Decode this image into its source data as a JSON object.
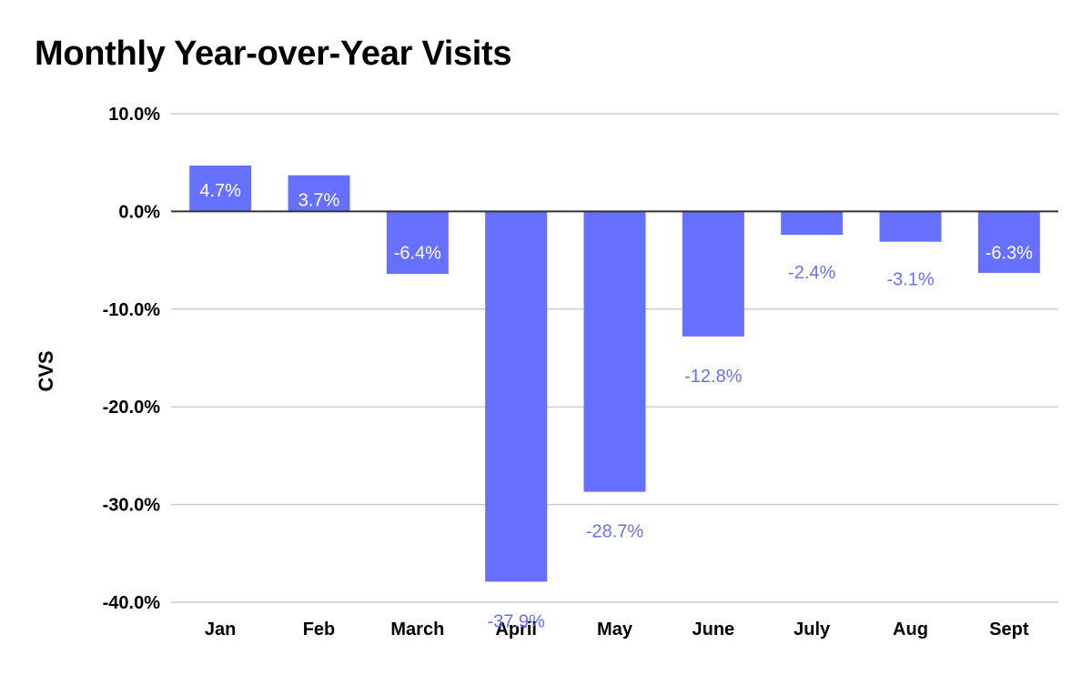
{
  "chart_data": {
    "type": "bar",
    "title": "Monthly Year-over-Year Visits",
    "xlabel": "",
    "ylabel": "CVS",
    "categories": [
      "Jan",
      "Feb",
      "March",
      "April",
      "May",
      "June",
      "July",
      "Aug",
      "Sept"
    ],
    "values": [
      4.7,
      3.7,
      -6.4,
      -37.9,
      -28.7,
      -12.8,
      -2.4,
      -3.1,
      -6.3
    ],
    "data_labels": [
      "4.7%",
      "3.7%",
      "-6.4%",
      "-37.9%",
      "-28.7%",
      "-12.8%",
      "-2.4%",
      "-3.1%",
      "-6.3%"
    ],
    "ylim": [
      -40,
      10
    ],
    "y_ticks": [
      10,
      0,
      -10,
      -20,
      -30,
      -40
    ],
    "y_tick_labels": [
      "10.0%",
      "0.0%",
      "-10.0%",
      "-20.0%",
      "-30.0%",
      "-40.0%"
    ],
    "grid": true,
    "legend": "none",
    "colors": {
      "bar": "#6770fc",
      "label_inside": "#ffffff",
      "label_outside": "#6770fc",
      "grid": "#cccccc",
      "zero_line": "#333333"
    }
  }
}
